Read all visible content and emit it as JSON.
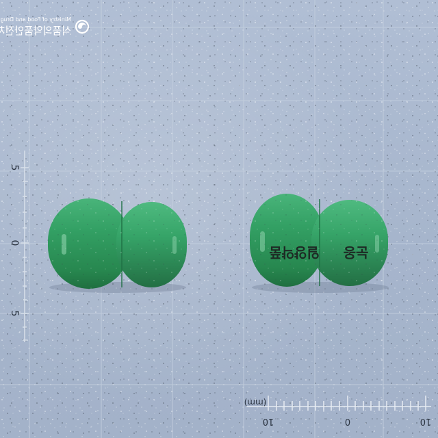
{
  "watermark": {
    "text_line1": "식품의약품안전처",
    "text_line2": "Ministry of Food and Drug Safety",
    "logo_icon": "mfds-emblem-icon"
  },
  "capsules": [
    {
      "side": "left",
      "body_color": "#2f9a62",
      "imprint": []
    },
    {
      "side": "right",
      "body_color": "#2f9a62",
      "imprint": [
        "일양약품",
        "눈옹"
      ]
    }
  ],
  "left_scale": {
    "labels": [
      "5",
      "0",
      "5"
    ]
  },
  "bottom_scale": {
    "unit_label": "(mm)",
    "labels": [
      "10",
      "0",
      "10"
    ]
  },
  "colors": {
    "background": "#a9b8cf",
    "capsule_green": "#2f9a62",
    "grid": "#c3cfdf"
  }
}
